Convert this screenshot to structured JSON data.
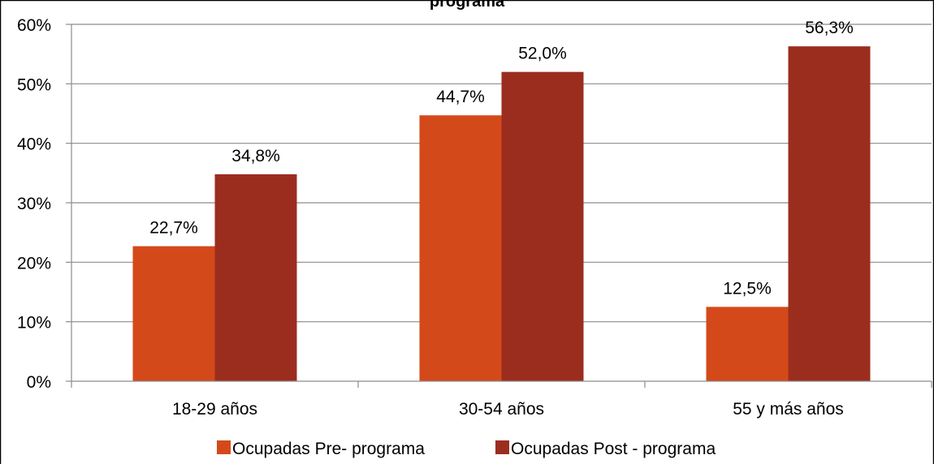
{
  "chart_data": {
    "type": "bar",
    "title": "programa",
    "categories": [
      "18-29 años",
      "30-54 años",
      "55 y más años"
    ],
    "series": [
      {
        "name": "Ocupadas Pre- programa",
        "values": [
          22.7,
          44.7,
          12.5
        ],
        "labels": [
          "22,7%",
          "44,7%",
          "12,5%"
        ],
        "color": "#d4491a"
      },
      {
        "name": "Ocupadas Post - programa",
        "values": [
          34.8,
          52.0,
          56.3
        ],
        "labels": [
          "34,8%",
          "52,0%",
          "56,3%"
        ],
        "color": "#9b2d1f"
      }
    ],
    "yticks": [
      "0%",
      "10%",
      "20%",
      "30%",
      "40%",
      "50%",
      "60%"
    ],
    "ylim": [
      0,
      60
    ],
    "grid": true,
    "legend_position": "bottom",
    "gridline_color": "#8c8c8c",
    "axis_color": "#8c8c8c"
  }
}
